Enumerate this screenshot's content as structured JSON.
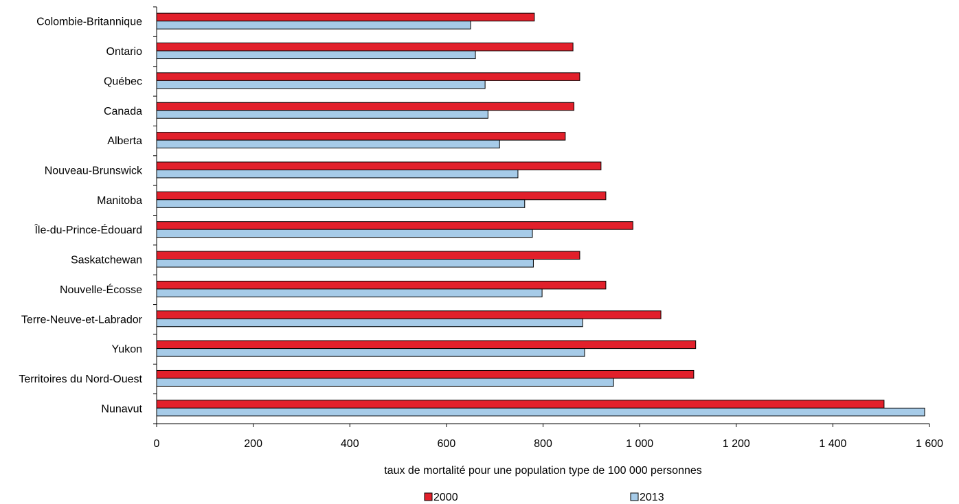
{
  "chart_data": {
    "type": "bar",
    "orientation": "horizontal",
    "title": "",
    "xlabel": "taux de mortalité pour une population type de 100 000 personnes",
    "ylabel": "",
    "xlim": [
      0,
      1600
    ],
    "xticks": [
      0,
      200,
      400,
      600,
      800,
      1000,
      1200,
      1400,
      1600
    ],
    "xtick_labels": [
      "0",
      "200",
      "400",
      "600",
      "800",
      "1 000",
      "1 200",
      "1 400",
      "1 600"
    ],
    "grid": false,
    "legend_position": "bottom",
    "categories": [
      "Colombie-Britannique",
      "Ontario",
      "Québec",
      "Canada",
      "Alberta",
      "Nouveau-Brunswick",
      "Manitoba",
      "Île-du-Prince-Édouard",
      "Saskatchewan",
      "Nouvelle-Écosse",
      "Terre-Neuve-et-Labrador",
      "Yukon",
      "Territoires du Nord-Ouest",
      "Nunavut"
    ],
    "series": [
      {
        "name": "2000",
        "color": "#e2202b",
        "values": [
          782,
          862,
          876,
          864,
          846,
          920,
          930,
          986,
          876,
          930,
          1044,
          1116,
          1112,
          1506
        ]
      },
      {
        "name": "2013",
        "color": "#a6cbe8",
        "values": [
          650,
          660,
          680,
          686,
          710,
          748,
          762,
          778,
          780,
          798,
          882,
          886,
          946,
          1590
        ]
      }
    ]
  }
}
